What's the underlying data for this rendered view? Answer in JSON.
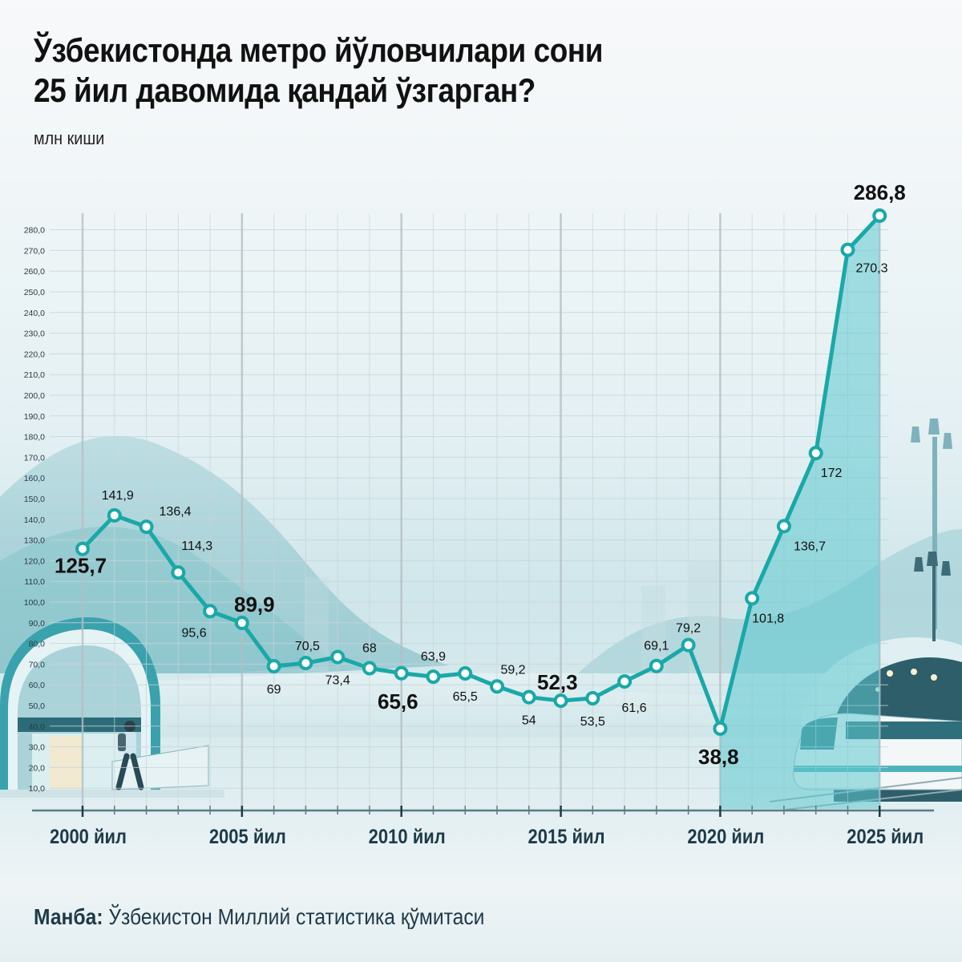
{
  "header": {
    "title_line1": "Ўзбекистонда метро йўловчилари сони",
    "title_line2": "25 йил давомида қандай ўзгарган?",
    "unit": "млн киши"
  },
  "footer": {
    "source_label": "Манба:",
    "source_text": " Ўзбекистон Миллий статистика қўмитаси"
  },
  "colors": {
    "line": "#1aa8a8",
    "area": "#5fc8d0",
    "axis": "#5b7a85",
    "grid": "#c9d3d8",
    "text": "#111111",
    "year_label": "#1e3a48"
  },
  "chart_data": {
    "type": "line",
    "title": "Ўзбекистонда метро йўловчилари сони 25 йил давомида қандай ўзгарган?",
    "xlabel": "",
    "ylabel": "млн киши",
    "x": [
      2000,
      2001,
      2002,
      2003,
      2004,
      2005,
      2006,
      2007,
      2008,
      2009,
      2010,
      2011,
      2012,
      2013,
      2014,
      2015,
      2016,
      2017,
      2018,
      2019,
      2020,
      2021,
      2022,
      2023,
      2024,
      2025
    ],
    "values": [
      125.7,
      141.9,
      136.4,
      114.3,
      95.6,
      89.9,
      69,
      70.5,
      73.4,
      68,
      65.6,
      63.9,
      65.5,
      59.2,
      54,
      52.3,
      53.5,
      61.6,
      69.1,
      79.2,
      38.8,
      101.8,
      136.7,
      172,
      270.3,
      286.8
    ],
    "labels": [
      "125,7",
      "141,9",
      "136,4",
      "114,3",
      "95,6",
      "89,9",
      "69",
      "70,5",
      "73,4",
      "68",
      "65,6",
      "63,9",
      "65,5",
      "59,2",
      "54",
      "52,3",
      "53,5",
      "61,6",
      "69,1",
      "79,2",
      "38,8",
      "101,8",
      "136,7",
      "172",
      "270,3",
      "286,8"
    ],
    "highlighted": [
      2000,
      2005,
      2010,
      2015,
      2020,
      2025
    ],
    "x_tick_labels": [
      "2000 йил",
      "2005 йил",
      "2010 йил",
      "2015 йил",
      "2020 йил",
      "2025 йил"
    ],
    "y_tick_labels": [
      "10,0",
      "20,0",
      "30,0",
      "40,0",
      "50,0",
      "60,0",
      "70,0",
      "80,0",
      "90,0",
      "100,0",
      "110,0",
      "120,0",
      "130,0",
      "140,0",
      "150,0",
      "160,0",
      "170,0",
      "180,0",
      "190,0",
      "200,0",
      "210,0",
      "220,0",
      "230,0",
      "240,0",
      "250,0",
      "260,0",
      "270,0",
      "280,0"
    ],
    "ylim": [
      0,
      290
    ],
    "grid": true,
    "shaded_area_from": 2020,
    "source": "Ўзбекистон Миллий статистика қўмитаси"
  }
}
